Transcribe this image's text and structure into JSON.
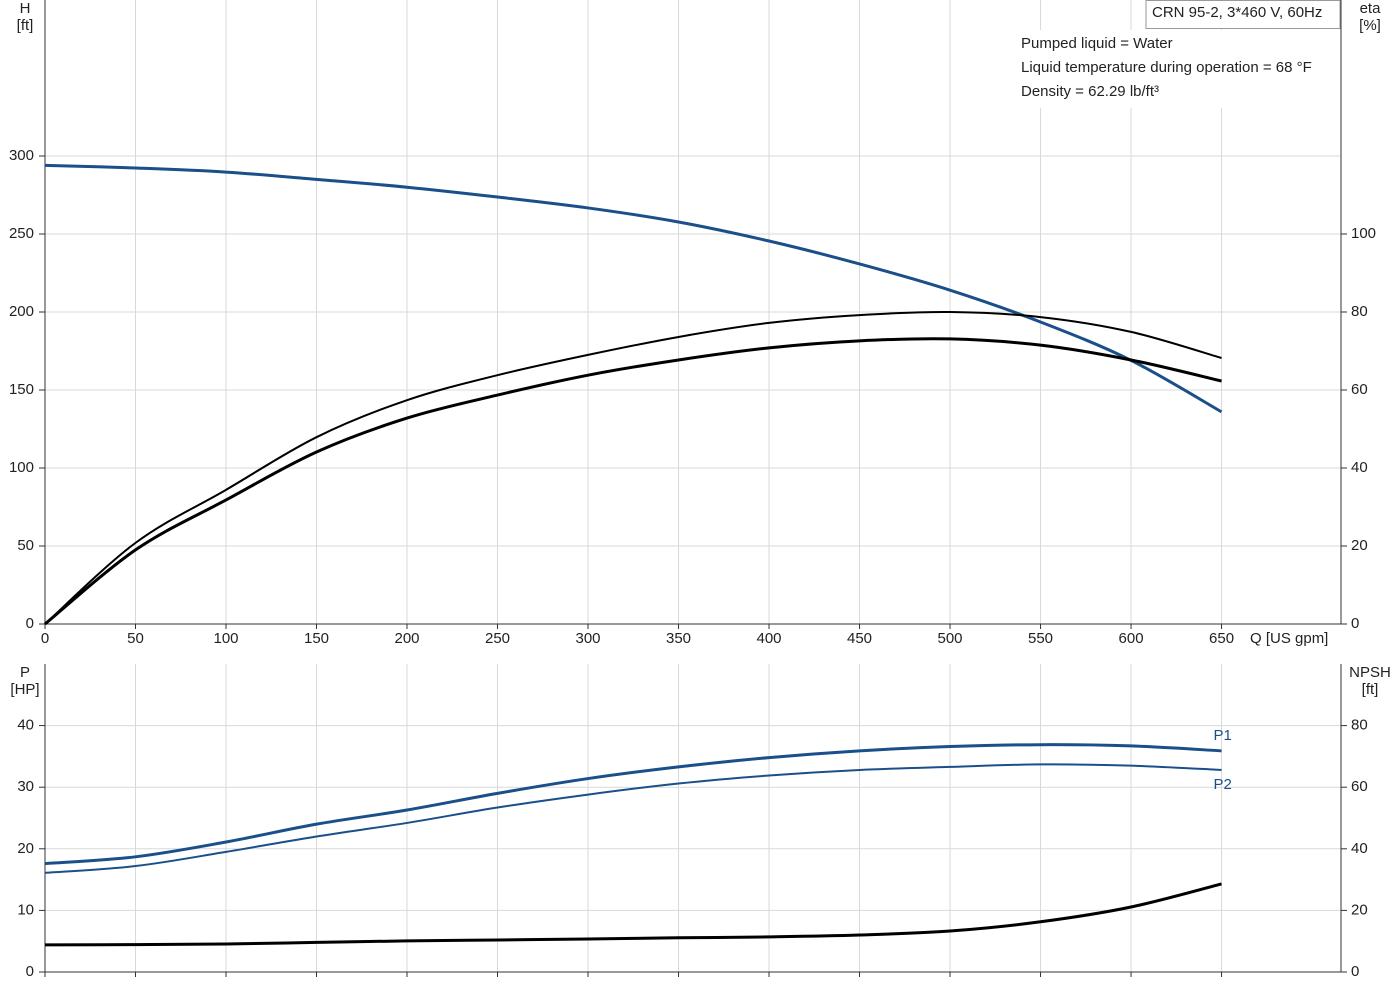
{
  "chart_data": [
    {
      "type": "line",
      "ylabel": "H",
      "ylabel_unit": "[ft]",
      "y2label": "eta",
      "y2label_unit": "[%]",
      "xlabel": "Q [US gpm]",
      "title": "CRN 95-2, 3*460 V, 60Hz",
      "annotations": [
        "Pumped liquid = Water",
        "Liquid temperature during operation = 68 °F",
        "Density = 62.29 lb/ft³"
      ],
      "x": [
        0,
        50,
        100,
        150,
        200,
        250,
        300,
        350,
        400,
        450,
        500,
        550,
        600,
        650
      ],
      "xlim": [
        0,
        716
      ],
      "xticks": [
        0,
        50,
        100,
        150,
        200,
        250,
        300,
        350,
        400,
        450,
        500,
        550,
        600,
        650
      ],
      "ylim": [
        0,
        400
      ],
      "yticks": [
        0,
        50,
        100,
        150,
        200,
        250,
        300
      ],
      "y2lim": [
        0,
        160
      ],
      "y2ticks": [
        0,
        20,
        40,
        60,
        80,
        100
      ],
      "grid": true,
      "series": [
        {
          "color": "#1a4f8a",
          "width": 3,
          "values": [
            294,
            292.3,
            289.7,
            285,
            280,
            273.7,
            266.7,
            257.7,
            245.5,
            230.8,
            214,
            193.6,
            169,
            136
          ]
        },
        {
          "color": "#000000",
          "width": 2,
          "axis": "y2",
          "values": [
            0,
            20.8,
            34.4,
            47.9,
            57.4,
            63.8,
            69,
            73.6,
            77.2,
            79.2,
            80,
            78.7,
            74.9,
            68.2
          ]
        },
        {
          "color": "#000000",
          "width": 3,
          "axis": "y2",
          "values": [
            0,
            19,
            31.8,
            44.1,
            52.8,
            58.7,
            63.8,
            67.7,
            70.8,
            72.6,
            73.1,
            71.5,
            67.7,
            62.3
          ]
        }
      ]
    },
    {
      "type": "line",
      "ylabel": "P",
      "ylabel_unit": "[HP]",
      "y2label": "NPSH",
      "y2label_unit": "[ft]",
      "x": [
        0,
        50,
        100,
        150,
        200,
        250,
        300,
        350,
        400,
        450,
        500,
        550,
        600,
        650
      ],
      "xlim": [
        0,
        716
      ],
      "ylim": [
        0,
        50
      ],
      "yticks": [
        0,
        10,
        20,
        30,
        40
      ],
      "y2lim": [
        0,
        100
      ],
      "y2ticks": [
        0,
        20,
        40,
        60,
        80
      ],
      "grid": true,
      "series": [
        {
          "name": "P1",
          "color": "#1a4f8a",
          "width": 3,
          "values": [
            17.6,
            18.7,
            21.1,
            24,
            26.3,
            29,
            31.4,
            33.3,
            34.8,
            35.9,
            36.6,
            36.9,
            36.7,
            35.9
          ]
        },
        {
          "name": "P2",
          "color": "#1a4f8a",
          "width": 2,
          "values": [
            16.1,
            17.2,
            19.5,
            22,
            24.2,
            26.7,
            28.8,
            30.6,
            31.9,
            32.8,
            33.3,
            33.7,
            33.5,
            32.8
          ]
        },
        {
          "color": "#000000",
          "width": 3,
          "axis": "y2",
          "values": [
            8.8,
            8.9,
            9.1,
            9.6,
            10.1,
            10.4,
            10.7,
            11.1,
            11.4,
            12,
            13.3,
            16.3,
            21.1,
            28.6
          ]
        }
      ]
    }
  ]
}
